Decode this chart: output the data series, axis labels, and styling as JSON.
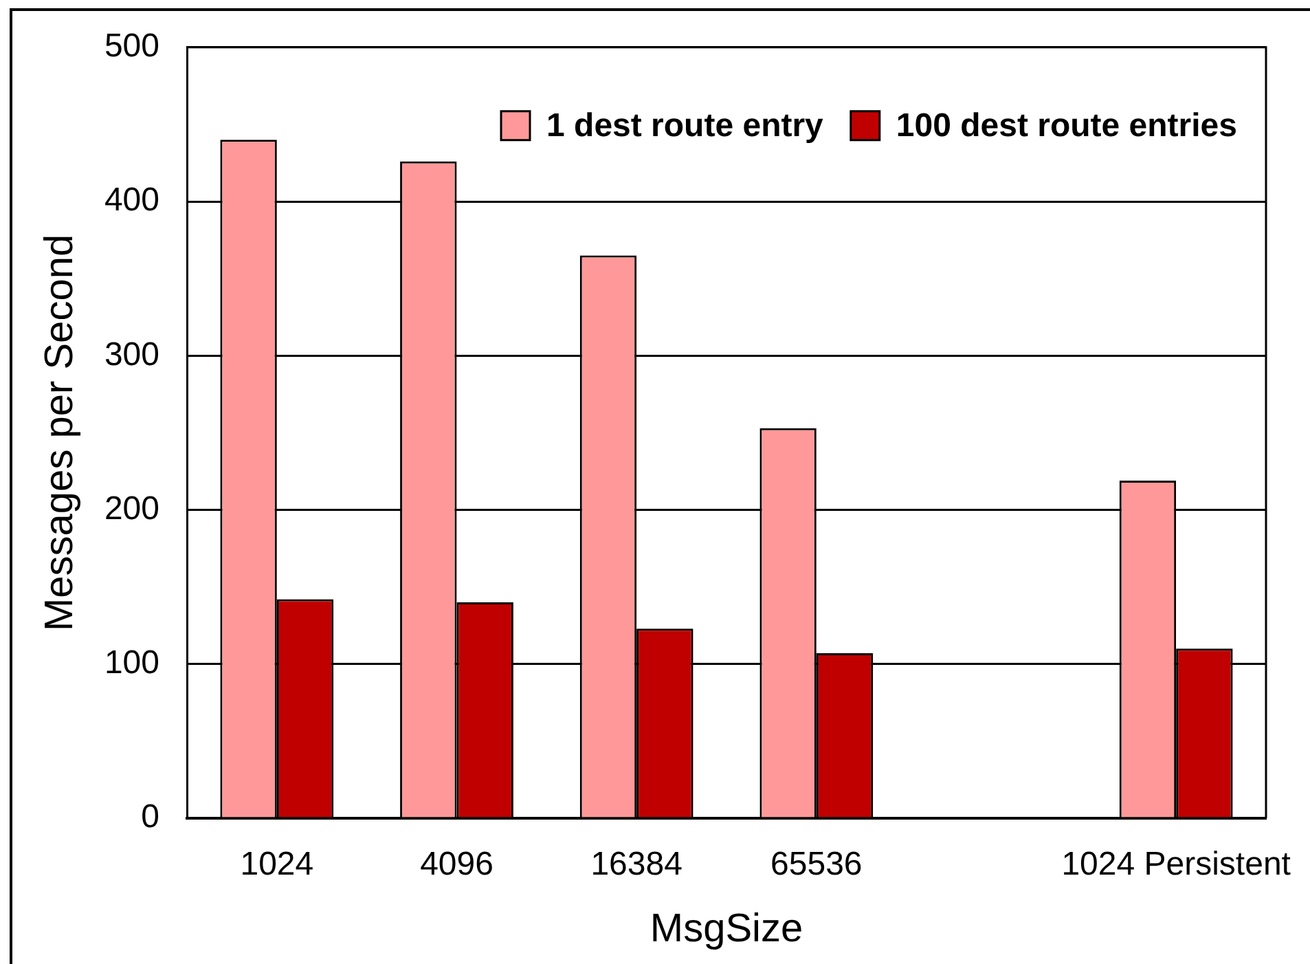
{
  "chart_data": {
    "type": "bar",
    "xlabel": "MsgSize",
    "ylabel": "Messages per Second",
    "categories": [
      "1024",
      "4096",
      "16384",
      "65536",
      null,
      "1024 Persistent"
    ],
    "series": [
      {
        "name": "1 dest route entry",
        "color": "#ff9999",
        "values": [
          440,
          426,
          365,
          253,
          null,
          219
        ]
      },
      {
        "name": "100 dest route entries",
        "color": "#c00000",
        "values": [
          142,
          140,
          123,
          107,
          null,
          110
        ]
      }
    ],
    "ylim": [
      0,
      500
    ],
    "yticks": [
      0,
      100,
      200,
      300,
      400,
      500
    ],
    "grid": "y",
    "legend": "top right"
  }
}
